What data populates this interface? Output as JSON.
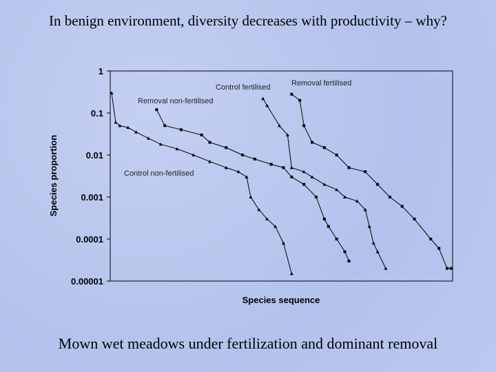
{
  "slide": {
    "title": "In benign environment, diversity decreases with productivity – why?",
    "caption": "Mown wet meadows under fertilization and dominant removal"
  },
  "chart_data": {
    "type": "line",
    "log_y": true,
    "y_label": "Species proportion",
    "x_label": "Species sequence",
    "xlim": [
      0,
      83
    ],
    "ylim": [
      1e-05,
      1
    ],
    "yticks": [
      1,
      0.1,
      0.01,
      0.001,
      0.0001,
      1e-05
    ],
    "series": [
      {
        "name": "Control non-fertilised",
        "color": "#000000",
        "marker": "triangle",
        "x": [
          0,
          1,
          2,
          4,
          6,
          9,
          12,
          16,
          20,
          24,
          28,
          31,
          33,
          34,
          36,
          38,
          40,
          42,
          44
        ],
        "values": [
          0.3,
          0.06,
          0.05,
          0.045,
          0.035,
          0.025,
          0.018,
          0.014,
          0.01,
          0.007,
          0.005,
          0.004,
          0.003,
          0.001,
          0.0005,
          0.0003,
          0.0002,
          8e-05,
          1.5e-05
        ]
      },
      {
        "name": "Removal non-fertilised",
        "color": "#000000",
        "marker": "square",
        "x": [
          11,
          13,
          17,
          22,
          24,
          28,
          32,
          35,
          39,
          42,
          44,
          47,
          50,
          52,
          53,
          55,
          57,
          58
        ],
        "values": [
          0.12,
          0.05,
          0.04,
          0.03,
          0.02,
          0.015,
          0.01,
          0.008,
          0.006,
          0.005,
          0.003,
          0.002,
          0.001,
          0.0003,
          0.0002,
          0.0001,
          5e-05,
          3e-05
        ]
      },
      {
        "name": "Control fertilised",
        "color": "#000000",
        "marker": "triangle",
        "x": [
          37,
          38,
          41,
          43,
          44,
          47,
          49,
          52,
          55,
          57,
          60,
          62,
          63,
          64,
          65,
          67
        ],
        "values": [
          0.22,
          0.15,
          0.05,
          0.03,
          0.005,
          0.004,
          0.003,
          0.002,
          0.0015,
          0.001,
          0.0008,
          0.0005,
          0.0002,
          8e-05,
          5e-05,
          2e-05
        ]
      },
      {
        "name": "Removal fertilised",
        "color": "#000000",
        "marker": "square",
        "x": [
          44,
          46,
          47,
          49,
          52,
          55,
          58,
          62,
          65,
          68,
          71,
          74,
          78,
          80,
          82,
          83
        ],
        "values": [
          0.28,
          0.2,
          0.05,
          0.02,
          0.015,
          0.01,
          0.005,
          0.004,
          0.002,
          0.001,
          0.0006,
          0.0003,
          0.0001,
          6e-05,
          2e-05,
          2e-05
        ]
      }
    ]
  }
}
